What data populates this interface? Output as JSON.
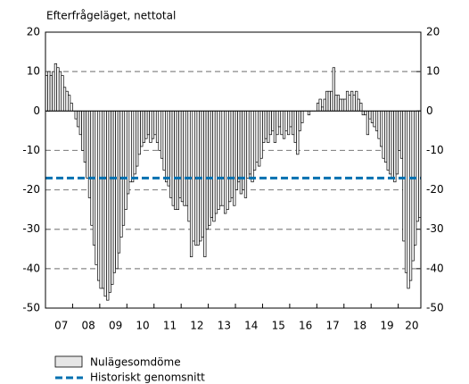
{
  "chart_data": {
    "type": "bar",
    "title": "Efterfrågeläget, nettotal",
    "categories": [
      null,
      null,
      null,
      null,
      null,
      null,
      "07",
      null,
      null,
      null,
      null,
      null,
      null,
      null,
      null,
      null,
      null,
      null,
      "08",
      null,
      null,
      null,
      null,
      null,
      null,
      null,
      null,
      null,
      null,
      null,
      "09",
      null,
      null,
      null,
      null,
      null,
      null,
      null,
      null,
      null,
      null,
      null,
      "10",
      null,
      null,
      null,
      null,
      null,
      null,
      null,
      null,
      null,
      null,
      null,
      "11",
      null,
      null,
      null,
      null,
      null,
      null,
      null,
      null,
      null,
      null,
      null,
      "12",
      null,
      null,
      null,
      null,
      null,
      null,
      null,
      null,
      null,
      null,
      null,
      "13",
      null,
      null,
      null,
      null,
      null,
      null,
      null,
      null,
      null,
      null,
      null,
      "14",
      null,
      null,
      null,
      null,
      null,
      null,
      null,
      null,
      null,
      null,
      null,
      "15",
      null,
      null,
      null,
      null,
      null,
      null,
      null,
      null,
      null,
      null,
      null,
      "16",
      null,
      null,
      null,
      null,
      null,
      null,
      null,
      null,
      null,
      null,
      null,
      "17",
      null,
      null,
      null,
      null,
      null,
      null,
      null,
      null,
      null,
      null,
      null,
      "18",
      null,
      null,
      null,
      null,
      null,
      null,
      null,
      null,
      null,
      null,
      null,
      "19",
      null,
      null,
      null,
      null,
      null,
      null,
      null,
      null,
      null,
      null,
      "20",
      null,
      null,
      null,
      null
    ],
    "series": [
      {
        "name": "Nulägesomdöme",
        "color": "#ffffff",
        "values": [
          9,
          10,
          9,
          10,
          12,
          11,
          10,
          9,
          6,
          5,
          4,
          2,
          0,
          -2,
          -4,
          -6,
          -10,
          -13,
          -17,
          -22,
          -29,
          -34,
          -39,
          -43,
          -45,
          -45,
          -47,
          -48,
          -46,
          -44,
          -41,
          -40,
          -36,
          -32,
          -29,
          -25,
          -21,
          -18,
          -18,
          -16,
          -14,
          -11,
          -9,
          -8,
          -7,
          -6,
          -8,
          -7,
          -6,
          -8,
          -10,
          -12,
          -15,
          -18,
          -19,
          -22,
          -24,
          -25,
          -25,
          -22,
          -23,
          -24,
          -24,
          -28,
          -37,
          -33,
          -34,
          -34,
          -33,
          -32,
          -37,
          -30,
          -29,
          -27,
          -28,
          -26,
          -25,
          -24,
          -24,
          -26,
          -25,
          -23,
          -22,
          -24,
          -20,
          -18,
          -21,
          -20,
          -22,
          -17,
          -16,
          -18,
          -15,
          -13,
          -14,
          -12,
          -8,
          -7,
          -8,
          -6,
          -5,
          -8,
          -6,
          -4,
          -6,
          -7,
          -5,
          -6,
          -4,
          -6,
          -8,
          -11,
          -5,
          -3,
          0,
          0,
          -1,
          0,
          0,
          0,
          2,
          3,
          1,
          3,
          5,
          5,
          5,
          11,
          4,
          4,
          3,
          3,
          3,
          5,
          4,
          5,
          4,
          5,
          3,
          2,
          -1,
          -1,
          -6,
          -2,
          -3,
          -4,
          -5,
          -7,
          -9,
          -12,
          -13,
          -15,
          -16,
          -17,
          -18,
          -16,
          -10,
          -12,
          -33,
          -41,
          -45,
          -43,
          -38,
          -34,
          -28,
          -27
        ]
      }
    ],
    "reference_line": {
      "name": "Historiskt genomsnitt",
      "value": -17,
      "color": "#0070b0"
    },
    "ylim": [
      -50,
      20
    ],
    "yticks": [
      -50,
      -40,
      -30,
      -20,
      -10,
      0,
      10,
      20
    ],
    "grid": true
  }
}
